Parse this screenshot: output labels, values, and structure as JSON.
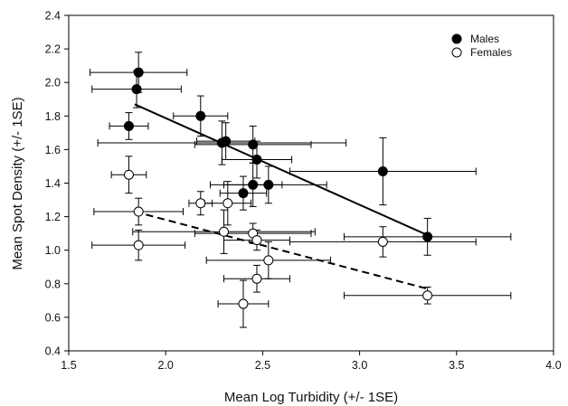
{
  "chart_data": {
    "type": "scatter",
    "xlabel": "Mean Log Turbidity (+/- 1SE)",
    "ylabel": "Mean Spot Density (+/- 1SE)",
    "xlim": [
      1.5,
      4.0
    ],
    "ylim": [
      0.4,
      2.4
    ],
    "x_ticks": [
      "1.5",
      "2.0",
      "2.5",
      "3.0",
      "3.5",
      "4.0"
    ],
    "y_ticks": [
      "0.4",
      "0.6",
      "0.8",
      "1.0",
      "1.2",
      "1.4",
      "1.6",
      "1.8",
      "2.0",
      "2.2",
      "2.4"
    ],
    "grid": false,
    "legend_position": "top-right",
    "series": [
      {
        "name": "Males",
        "marker": "filled-circle",
        "color": "#000000",
        "points": [
          {
            "x": 1.86,
            "y": 2.06,
            "xerr": 0.25,
            "yerr": 0.12
          },
          {
            "x": 1.85,
            "y": 1.96,
            "xerr": 0.23,
            "yerr": 0.11
          },
          {
            "x": 1.81,
            "y": 1.74,
            "xerr": 0.1,
            "yerr": 0.08
          },
          {
            "x": 2.18,
            "y": 1.8,
            "xerr": 0.14,
            "yerr": 0.12
          },
          {
            "x": 2.29,
            "y": 1.64,
            "xerr": 0.64,
            "yerr": 0.13
          },
          {
            "x": 2.31,
            "y": 1.65,
            "xerr": 0.15,
            "yerr": 0.11
          },
          {
            "x": 2.45,
            "y": 1.63,
            "xerr": 0.3,
            "yerr": 0.11
          },
          {
            "x": 2.47,
            "y": 1.54,
            "xerr": 0.18,
            "yerr": 0.11
          },
          {
            "x": 2.4,
            "y": 1.34,
            "xerr": 0.12,
            "yerr": 0.1
          },
          {
            "x": 2.45,
            "y": 1.39,
            "xerr": 0.15,
            "yerr": 0.13
          },
          {
            "x": 2.53,
            "y": 1.39,
            "xerr": 0.3,
            "yerr": 0.11
          },
          {
            "x": 3.12,
            "y": 1.47,
            "xerr": 0.48,
            "yerr": 0.2
          },
          {
            "x": 3.35,
            "y": 1.08,
            "xerr": 0.43,
            "yerr": 0.11
          }
        ],
        "trend": {
          "style": "solid",
          "x": [
            1.84,
            3.35
          ],
          "y": [
            1.87,
            1.09
          ]
        }
      },
      {
        "name": "Females",
        "marker": "open-circle",
        "color": "#000000",
        "points": [
          {
            "x": 1.81,
            "y": 1.45,
            "xerr": 0.09,
            "yerr": 0.11
          },
          {
            "x": 1.86,
            "y": 1.23,
            "xerr": 0.23,
            "yerr": 0.08
          },
          {
            "x": 1.86,
            "y": 1.03,
            "xerr": 0.24,
            "yerr": 0.09
          },
          {
            "x": 2.18,
            "y": 1.28,
            "xerr": 0.06,
            "yerr": 0.07
          },
          {
            "x": 2.32,
            "y": 1.28,
            "xerr": 0.12,
            "yerr": 0.13
          },
          {
            "x": 2.3,
            "y": 1.11,
            "xerr": 0.47,
            "yerr": 0.13
          },
          {
            "x": 2.45,
            "y": 1.1,
            "xerr": 0.3,
            "yerr": 0.06
          },
          {
            "x": 2.47,
            "y": 1.06,
            "xerr": 0.17,
            "yerr": 0.06
          },
          {
            "x": 2.53,
            "y": 0.94,
            "xerr": 0.32,
            "yerr": 0.11
          },
          {
            "x": 2.47,
            "y": 0.83,
            "xerr": 0.17,
            "yerr": 0.08
          },
          {
            "x": 2.4,
            "y": 0.68,
            "xerr": 0.13,
            "yerr": 0.14
          },
          {
            "x": 3.12,
            "y": 1.05,
            "xerr": 0.48,
            "yerr": 0.09
          },
          {
            "x": 3.35,
            "y": 0.73,
            "xerr": 0.43,
            "yerr": 0.05
          }
        ],
        "trend": {
          "style": "dashed",
          "x": [
            1.84,
            3.35
          ],
          "y": [
            1.23,
            0.77
          ]
        }
      }
    ]
  }
}
